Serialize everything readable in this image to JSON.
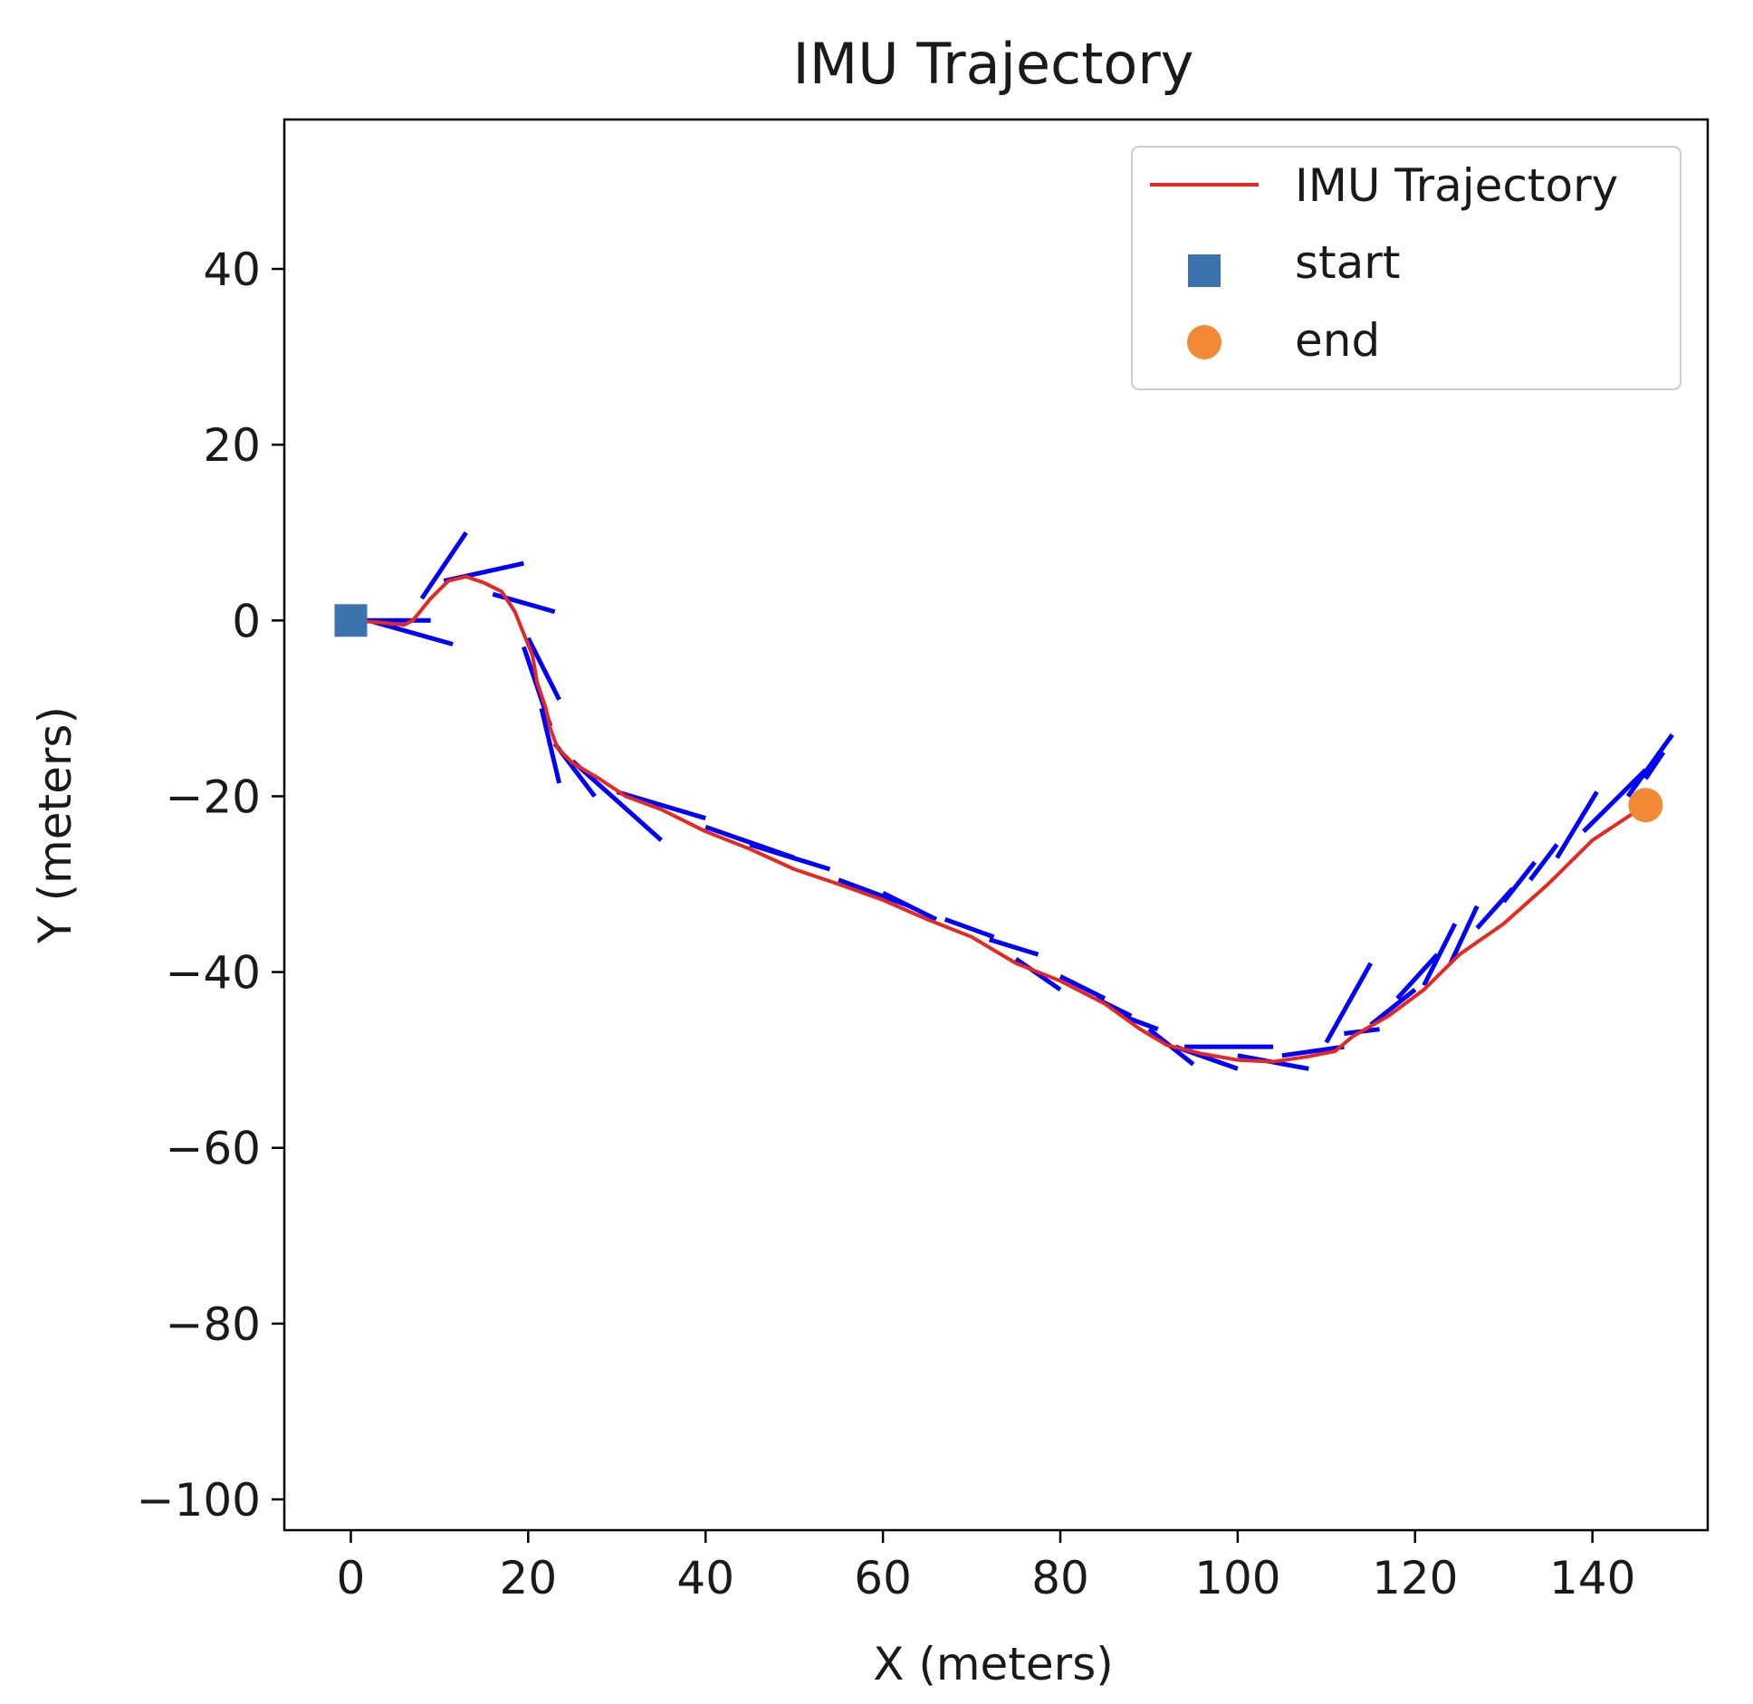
{
  "chart_data": {
    "type": "line",
    "title": "IMU Trajectory",
    "xlabel": "X (meters)",
    "ylabel": "Y (meters)",
    "xlim": [
      -7.5,
      153
    ],
    "ylim": [
      -103.5,
      57
    ],
    "xticks": [
      0,
      20,
      40,
      60,
      80,
      100,
      120,
      140
    ],
    "yticks": [
      40,
      20,
      0,
      -20,
      -40,
      -60,
      -80,
      -100
    ],
    "xtick_labels": [
      "0",
      "20",
      "40",
      "60",
      "80",
      "100",
      "120",
      "140"
    ],
    "ytick_labels": [
      "40",
      "20",
      "0",
      "−20",
      "−40",
      "−60",
      "−80",
      "−100"
    ],
    "grid": false,
    "legend": {
      "position": "upper right",
      "entries": [
        "IMU Trajectory",
        "start",
        "end"
      ]
    },
    "series": [
      {
        "name": "IMU Trajectory",
        "color": "#e8281e",
        "points": [
          [
            0,
            0
          ],
          [
            3,
            -0.2
          ],
          [
            6,
            -0.5
          ],
          [
            7,
            0
          ],
          [
            9,
            2.5
          ],
          [
            11,
            4.5
          ],
          [
            13,
            5
          ],
          [
            15,
            4.3
          ],
          [
            17,
            3.3
          ],
          [
            18.5,
            1
          ],
          [
            19.5,
            -1.5
          ],
          [
            20.5,
            -4
          ],
          [
            21,
            -7
          ],
          [
            22,
            -10
          ],
          [
            22.5,
            -12.3
          ],
          [
            23.3,
            -14.5
          ],
          [
            25,
            -16.2
          ],
          [
            28,
            -18
          ],
          [
            31,
            -20
          ],
          [
            35,
            -21.5
          ],
          [
            40,
            -24
          ],
          [
            45,
            -26
          ],
          [
            50,
            -28.3
          ],
          [
            55,
            -30
          ],
          [
            60,
            -31.8
          ],
          [
            65,
            -34
          ],
          [
            70,
            -36
          ],
          [
            75,
            -39
          ],
          [
            80,
            -41
          ],
          [
            85,
            -43.6
          ],
          [
            89,
            -46.5
          ],
          [
            92,
            -48.3
          ],
          [
            96,
            -49.3
          ],
          [
            100,
            -50
          ],
          [
            104,
            -50.2
          ],
          [
            108,
            -49.6
          ],
          [
            111,
            -49
          ],
          [
            113,
            -47.3
          ],
          [
            117,
            -45
          ],
          [
            121,
            -42
          ],
          [
            125,
            -38
          ],
          [
            130,
            -34.5
          ],
          [
            135,
            -30
          ],
          [
            140,
            -25
          ],
          [
            146,
            -21
          ]
        ]
      },
      {
        "name": "start",
        "type": "scatter",
        "marker": "square",
        "color": "#3b73ad",
        "points": [
          [
            0,
            0
          ]
        ]
      },
      {
        "name": "end",
        "type": "scatter",
        "marker": "circle",
        "color": "#f28a35",
        "points": [
          [
            146,
            -21
          ]
        ]
      },
      {
        "type": "heading_segments",
        "color": "#0000ff",
        "segments": [
          [
            [
              0,
              0
            ],
            [
              9,
              0
            ]
          ],
          [
            [
              2,
              0
            ],
            [
              11.5,
              -2.7
            ]
          ],
          [
            [
              8,
              2.5
            ],
            [
              13,
              10
            ]
          ],
          [
            [
              10.5,
              4.5
            ],
            [
              19.5,
              6.5
            ]
          ],
          [
            [
              16,
              3
            ],
            [
              23,
              1
            ]
          ],
          [
            [
              19.5,
              -3
            ],
            [
              22.5,
              -12
            ]
          ],
          [
            [
              20,
              -2
            ],
            [
              23.5,
              -9
            ]
          ],
          [
            [
              21.5,
              -10
            ],
            [
              23.5,
              -18.5
            ]
          ],
          [
            [
              23,
              -14
            ],
            [
              27.5,
              -20
            ]
          ],
          [
            [
              25,
              -16
            ],
            [
              35,
              -25
            ]
          ],
          [
            [
              30,
              -19.5
            ],
            [
              40,
              -22.5
            ]
          ],
          [
            [
              40,
              -23.5
            ],
            [
              50,
              -27
            ]
          ],
          [
            [
              45,
              -25.5
            ],
            [
              54,
              -28.3
            ]
          ],
          [
            [
              55,
              -29.5
            ],
            [
              63,
              -32.5
            ]
          ],
          [
            [
              60,
              -31
            ],
            [
              66,
              -34
            ]
          ],
          [
            [
              67,
              -34
            ],
            [
              72.5,
              -36
            ]
          ],
          [
            [
              72,
              -36.3
            ],
            [
              77.5,
              -38
            ]
          ],
          [
            [
              75,
              -38.5
            ],
            [
              80,
              -42
            ]
          ],
          [
            [
              80,
              -40.5
            ],
            [
              85,
              -43
            ]
          ],
          [
            [
              84,
              -43
            ],
            [
              88,
              -45
            ]
          ],
          [
            [
              87,
              -45
            ],
            [
              91,
              -46.5
            ]
          ],
          [
            [
              90,
              -46.5
            ],
            [
              95,
              -50.5
            ]
          ],
          [
            [
              93,
              -48.5
            ],
            [
              100,
              -51
            ]
          ],
          [
            [
              94,
              -48.5
            ],
            [
              104,
              -48.5
            ]
          ],
          [
            [
              100,
              -49.5
            ],
            [
              108,
              -51
            ]
          ],
          [
            [
              105,
              -49.5
            ],
            [
              112,
              -48.5
            ]
          ],
          [
            [
              110,
              -48
            ],
            [
              115,
              -39
            ]
          ],
          [
            [
              112,
              -47
            ],
            [
              116,
              -46.5
            ]
          ],
          [
            [
              115,
              -46
            ],
            [
              120,
              -42
            ]
          ],
          [
            [
              118,
              -43
            ],
            [
              122.5,
              -38
            ]
          ],
          [
            [
              121,
              -41.5
            ],
            [
              124.5,
              -34.5
            ]
          ],
          [
            [
              124,
              -39
            ],
            [
              127,
              -32.5
            ]
          ],
          [
            [
              127,
              -35
            ],
            [
              131,
              -30.5
            ]
          ],
          [
            [
              130,
              -32
            ],
            [
              133.5,
              -27.5
            ]
          ],
          [
            [
              133,
              -29.5
            ],
            [
              136,
              -25.5
            ]
          ],
          [
            [
              136,
              -27
            ],
            [
              140.5,
              -19.5
            ]
          ],
          [
            [
              139,
              -24
            ],
            [
              146,
              -17
            ]
          ],
          [
            [
              144,
              -20
            ],
            [
              149,
              -13
            ]
          ],
          [
            [
              146,
              -18
            ],
            [
              148,
              -15
            ]
          ]
        ]
      }
    ]
  }
}
